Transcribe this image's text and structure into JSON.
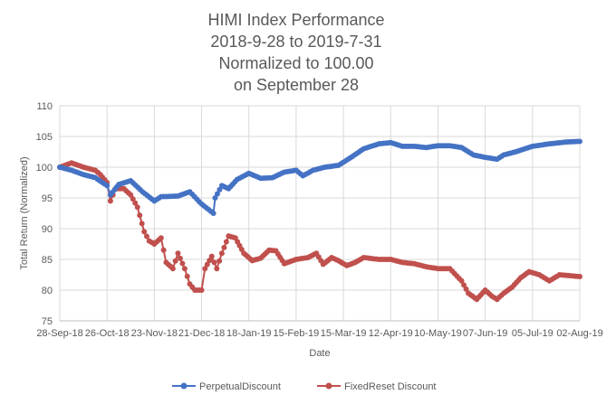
{
  "chart_data": {
    "type": "line",
    "title": [
      "HIMI Index Performance",
      "2018-9-28 to 2019-7-31",
      "Normalized to 100.00",
      "on September 28"
    ],
    "xlabel": "Date",
    "ylabel": "Total Return (Normalized)",
    "ylim": [
      75,
      110
    ],
    "yticks": [
      "75",
      "80",
      "85",
      "90",
      "95",
      "100",
      "105",
      "110"
    ],
    "xlim_days": [
      0,
      308
    ],
    "xticks": [
      "28-Sep-18",
      "26-Oct-18",
      "23-Nov-18",
      "21-Dec-18",
      "18-Jan-19",
      "15-Feb-19",
      "15-Mar-19",
      "12-Apr-19",
      "10-May-19",
      "07-Jun-19",
      "05-Jul-19",
      "02-Aug-19"
    ],
    "grid": true,
    "legend": "bottom",
    "x_unit": "days since 28-Sep-18",
    "series": [
      {
        "name": "PerpetualDiscount",
        "color": "#4472C4",
        "x": [
          0,
          7,
          14,
          21,
          28,
          30,
          35,
          42,
          49,
          56,
          60,
          70,
          77,
          84,
          91,
          92,
          96,
          100,
          105,
          112,
          119,
          126,
          133,
          140,
          144,
          150,
          157,
          165,
          172,
          180,
          189,
          196,
          203,
          210,
          217,
          224,
          231,
          238,
          245,
          252,
          259,
          263,
          270,
          280,
          290,
          300,
          308
        ],
        "values": [
          100,
          99.5,
          98.8,
          98.3,
          97,
          95.5,
          97.2,
          97.8,
          96,
          94.5,
          95.2,
          95.3,
          96,
          94,
          92.5,
          95,
          97,
          96.5,
          98,
          99,
          98.2,
          98.3,
          99.2,
          99.5,
          98.6,
          99.5,
          100,
          100.3,
          101.5,
          103,
          103.8,
          104,
          103.4,
          103.4,
          103.2,
          103.5,
          103.5,
          103.2,
          102,
          101.6,
          101.3,
          102,
          102.5,
          103.4,
          103.8,
          104.1,
          104.2
        ]
      },
      {
        "name": "FixedReset Discount",
        "color": "#C0504D",
        "x": [
          0,
          7,
          14,
          21,
          24,
          28,
          30,
          33,
          38,
          42,
          46,
          50,
          53,
          56,
          60,
          63,
          67,
          70,
          74,
          77,
          80,
          84,
          86,
          90,
          93,
          96,
          100,
          104,
          109,
          114,
          119,
          124,
          128,
          133,
          140,
          147,
          152,
          156,
          161,
          165,
          170,
          175,
          180,
          189,
          196,
          203,
          210,
          217,
          224,
          231,
          238,
          242,
          247,
          252,
          256,
          259,
          263,
          268,
          273,
          278,
          284,
          290,
          296,
          304,
          308
        ],
        "values": [
          100,
          100.7,
          100,
          99.5,
          98.8,
          97.5,
          94.5,
          96.5,
          96.5,
          95.5,
          93.5,
          89.5,
          88,
          87.5,
          88.5,
          84.5,
          83.5,
          86,
          83.5,
          81,
          80,
          80,
          83.5,
          85.5,
          83.5,
          86,
          88.8,
          88.5,
          86,
          84.8,
          85.2,
          86.5,
          86.4,
          84.3,
          85,
          85.3,
          86,
          84.2,
          85.3,
          84.8,
          84,
          84.5,
          85.3,
          85,
          85,
          84.5,
          84.3,
          83.8,
          83.5,
          83.5,
          81.5,
          79.5,
          78.5,
          80,
          79,
          78.5,
          79.5,
          80.5,
          82,
          83,
          82.5,
          81.5,
          82.5,
          82.3,
          82.2
        ]
      }
    ]
  }
}
